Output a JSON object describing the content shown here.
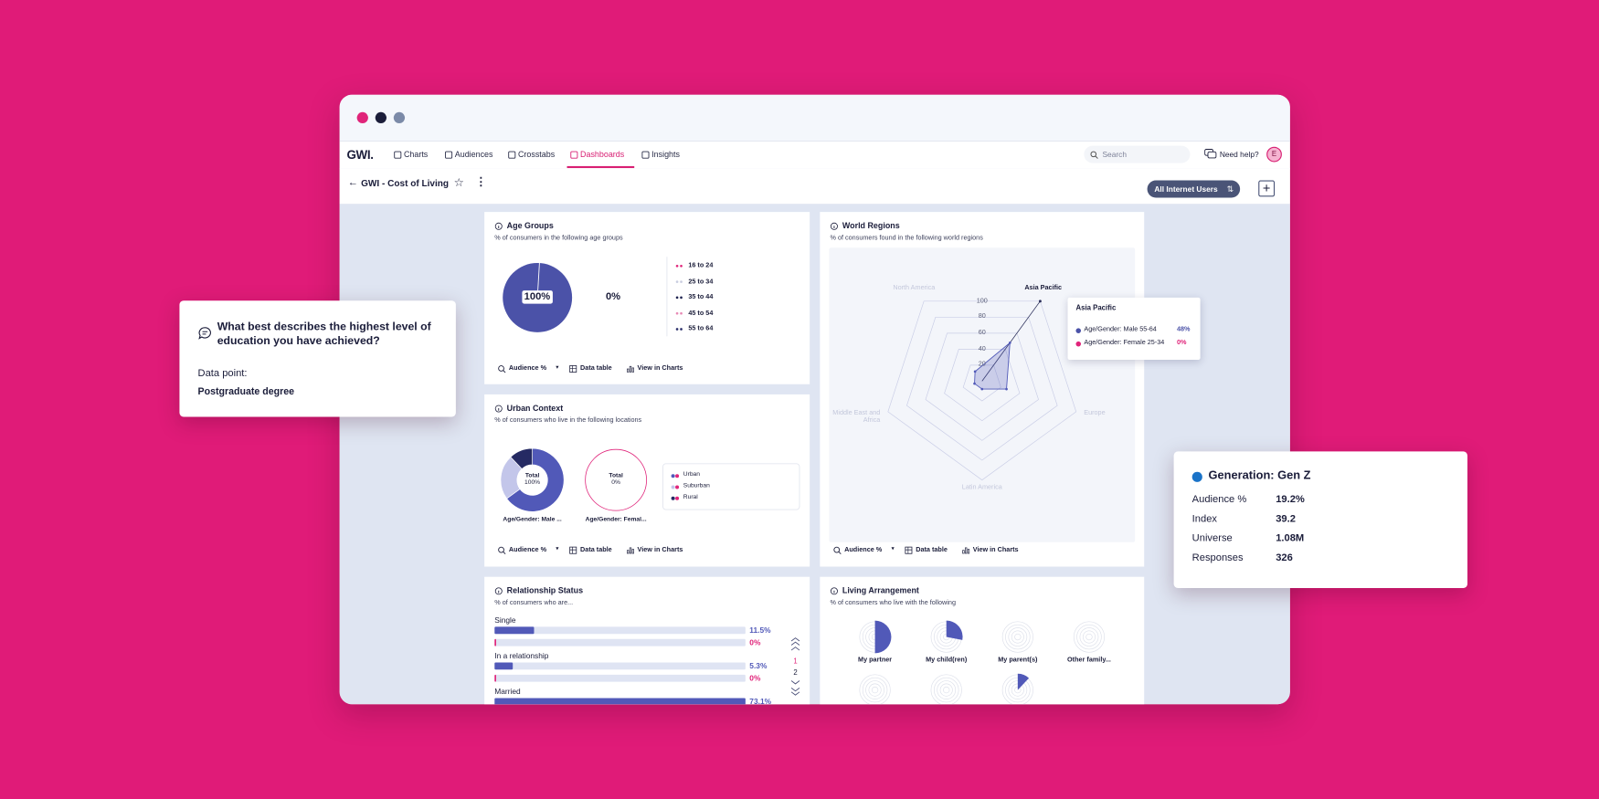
{
  "window": {
    "nav": {
      "logo": "GWI.",
      "items": [
        "Charts",
        "Audiences",
        "Crosstabs",
        "Dashboards",
        "Insights"
      ],
      "active": 3,
      "search": "Search",
      "help": "Need help?",
      "avatar": "E"
    },
    "toolbar": {
      "title": "GWI - Cost of Living",
      "audience": "All Internet Users"
    }
  },
  "cards": {
    "footer_actions": [
      "Audience %",
      "Data table",
      "View in Charts"
    ],
    "age_groups": {
      "title": "Age Groups",
      "subtitle": "% of consumers in the following age groups",
      "pie": {
        "values": [
          100
        ],
        "value_labels": [
          "100%"
        ],
        "color": "#4b52a8"
      },
      "compare_label": "0%",
      "legend": [
        "16 to 24",
        "25 to 34",
        "35 to 44",
        "45 to 54",
        "55 to 64"
      ],
      "legend_colors": [
        "#e0247a",
        "#c9cde0",
        "#1f2350",
        "#e88ab5",
        "#2b2f6b"
      ]
    },
    "urban_context": {
      "title": "Urban Context",
      "subtitle": "% of consumers who live in the following locations",
      "total_text": "Total",
      "legend": [
        "Urban",
        "Suburban",
        "Rural"
      ],
      "colors": [
        "#5159b8",
        "#c3c6ea",
        "#252a63"
      ],
      "donuts": [
        {
          "label": "Age/Gender: Male ...",
          "total_label": "100%",
          "values": [
            65,
            23,
            12
          ]
        },
        {
          "label": "Age/Gender: Femal...",
          "total_label": "0%",
          "values": [
            0,
            0,
            0
          ]
        }
      ]
    },
    "world_regions": {
      "title": "World Regions",
      "subtitle": "% of consumers found in the following world regions",
      "axes": [
        "Asia Pacific",
        "Europe",
        "Latin America",
        "Middle East and Africa",
        "North America"
      ],
      "values": [
        48,
        26,
        8,
        8,
        12
      ],
      "rlim": [
        0,
        100
      ],
      "ticks": [
        20,
        40,
        60,
        80,
        100
      ],
      "color": "#5159b8",
      "tooltip": {
        "title": "Asia Pacific",
        "rows": [
          {
            "label": "Age/Gender: Male 55-64",
            "value": 48,
            "value_label": "48%",
            "color": "#4b52a8"
          },
          {
            "label": "Age/Gender: Female 25-34",
            "value": 0,
            "value_label": "0%",
            "color": "#e0247a"
          }
        ]
      }
    },
    "relationship_status": {
      "title": "Relationship Status",
      "subtitle": "% of consumers who are...",
      "series_colors": [
        "#5159b8",
        "#e0247a"
      ],
      "rows": [
        {
          "label": "Single",
          "values": [
            11.5,
            0
          ],
          "value_labels": [
            "11.5%",
            "0%"
          ]
        },
        {
          "label": "In a relationship",
          "values": [
            5.3,
            0
          ],
          "value_labels": [
            "5.3%",
            "0%"
          ]
        },
        {
          "label": "Married",
          "values": [
            73.1
          ],
          "value_labels": [
            "73.1%"
          ]
        }
      ],
      "pages": [
        "1",
        "2"
      ]
    },
    "living_arrangement": {
      "title": "Living Arrangement",
      "subtitle": "% of consumers who live with the following",
      "color": "#5159b8",
      "categories": [
        "My partner",
        "My child(ren)",
        "My parent(s)",
        "Other family...",
        null,
        null,
        null
      ],
      "values": [
        50,
        28,
        0,
        0,
        0,
        0,
        12
      ]
    }
  },
  "question_card": {
    "title": "What best describes the highest level of education you have achieved?",
    "data_point_label": "Data point:",
    "data_point": "Postgraduate degree"
  },
  "audience_card": {
    "title": "Generation: Gen Z",
    "rows": [
      {
        "label": "Audience %",
        "value": "19.2%"
      },
      {
        "label": "Index",
        "value": "39.2"
      },
      {
        "label": "Universe",
        "value": "1.08M"
      },
      {
        "label": "Responses",
        "value": "326"
      }
    ]
  }
}
